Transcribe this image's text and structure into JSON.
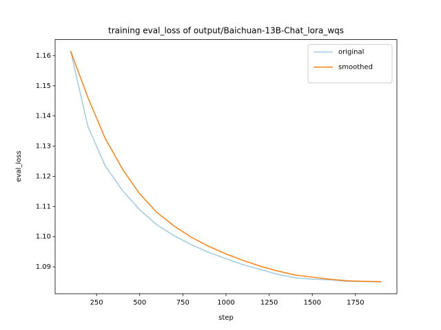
{
  "chart_data": {
    "type": "line",
    "title": "training eval_loss of output/Baichuan-13B-Chat_lora_wqs",
    "xlabel": "step",
    "ylabel": "eval_loss",
    "x": [
      100,
      200,
      300,
      400,
      500,
      600,
      700,
      800,
      900,
      1000,
      1100,
      1200,
      1300,
      1400,
      1500,
      1600,
      1700,
      1800,
      1900
    ],
    "series": [
      {
        "name": "original",
        "color": "#9ecae1",
        "values": [
          1.1615,
          1.1365,
          1.1235,
          1.1153,
          1.1089,
          1.1039,
          1.1003,
          1.0973,
          1.0948,
          1.0927,
          1.0907,
          1.0891,
          1.0875,
          1.0864,
          1.0859,
          1.0857,
          1.0852,
          1.0851,
          1.085
        ]
      },
      {
        "name": "smoothed",
        "color": "#ff7f0e",
        "values": [
          1.1615,
          1.1461,
          1.1326,
          1.1224,
          1.1142,
          1.108,
          1.1035,
          1.0998,
          1.0968,
          1.0943,
          1.0921,
          1.0902,
          1.0886,
          1.0873,
          1.0866,
          1.0859,
          1.0854,
          1.0852,
          1.0851
        ]
      }
    ],
    "xlim": [
      10,
      1990
    ],
    "xticks": [
      250,
      500,
      750,
      1000,
      1250,
      1500,
      1750
    ],
    "ylim": [
      1.0811,
      1.1653
    ],
    "yticks": [
      {
        "value": 1.09,
        "label": "1.09"
      },
      {
        "value": 1.1,
        "label": "1.10"
      },
      1.11,
      1.12,
      1.13,
      1.14,
      1.15,
      1.16
    ],
    "legend": "upper right"
  }
}
